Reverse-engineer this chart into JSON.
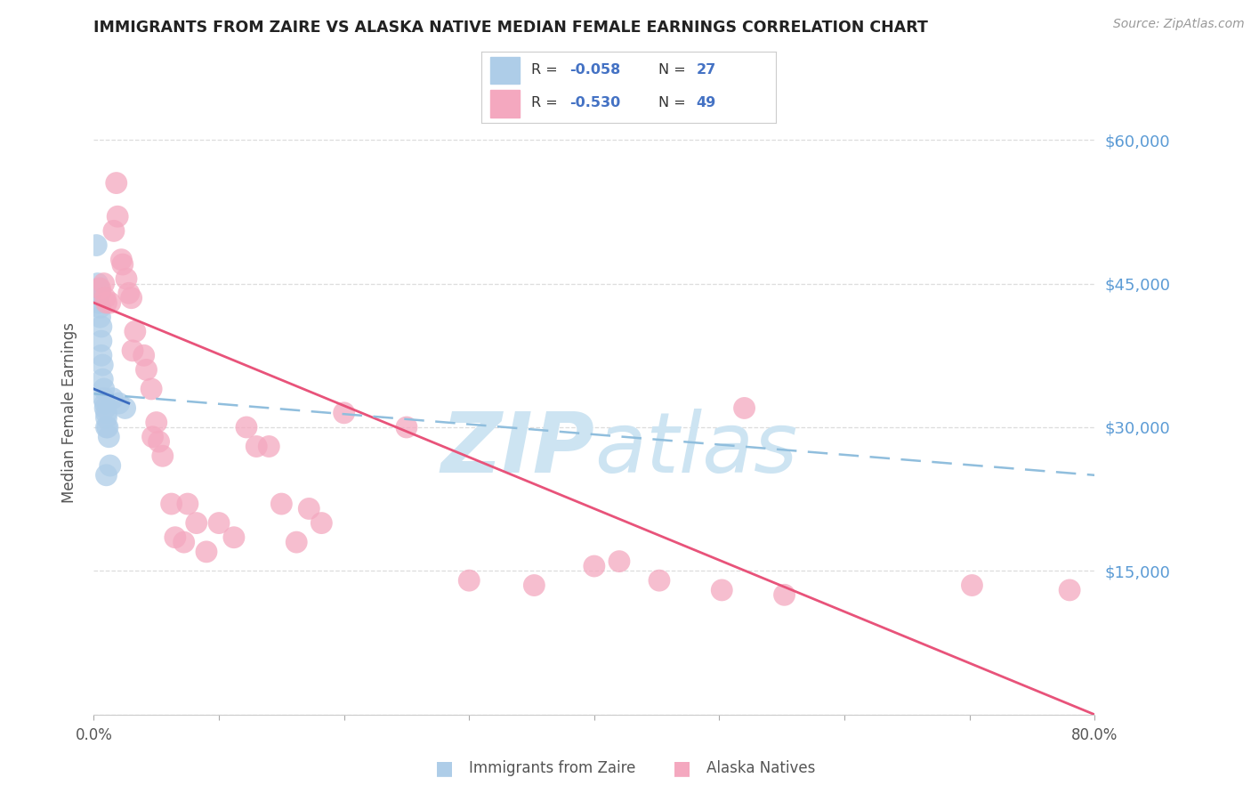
{
  "title": "IMMIGRANTS FROM ZAIRE VS ALASKA NATIVE MEDIAN FEMALE EARNINGS CORRELATION CHART",
  "source": "Source: ZipAtlas.com",
  "ylabel": "Median Female Earnings",
  "xlim": [
    0,
    0.8
  ],
  "ylim": [
    0,
    63000
  ],
  "yticks": [
    0,
    15000,
    30000,
    45000,
    60000
  ],
  "xticks_pos": [
    0.0,
    0.1,
    0.2,
    0.3,
    0.4,
    0.5,
    0.6,
    0.7,
    0.8
  ],
  "xtick_labels": [
    "0.0%",
    "",
    "",
    "",
    "",
    "",
    "",
    "",
    "80.0%"
  ],
  "blue_color": "#aecde8",
  "pink_color": "#f4a8bf",
  "blue_line_color": "#3a6bbf",
  "pink_line_color": "#e8537a",
  "blue_dashed_color": "#90bedd",
  "right_tick_color": "#5b9bd5",
  "text_blue_color": "#4472c4",
  "watermark_color": "#cde4f2",
  "blue_scatter": [
    [
      0.002,
      49000
    ],
    [
      0.003,
      45000
    ],
    [
      0.003,
      44000
    ],
    [
      0.004,
      44500
    ],
    [
      0.004,
      43000
    ],
    [
      0.005,
      44000
    ],
    [
      0.005,
      42500
    ],
    [
      0.005,
      41500
    ],
    [
      0.006,
      40500
    ],
    [
      0.006,
      39000
    ],
    [
      0.006,
      37500
    ],
    [
      0.007,
      36500
    ],
    [
      0.007,
      35000
    ],
    [
      0.008,
      34000
    ],
    [
      0.008,
      33000
    ],
    [
      0.009,
      32500
    ],
    [
      0.009,
      32000
    ],
    [
      0.01,
      31500
    ],
    [
      0.01,
      31000
    ],
    [
      0.01,
      30000
    ],
    [
      0.011,
      30000
    ],
    [
      0.012,
      29000
    ],
    [
      0.015,
      33000
    ],
    [
      0.02,
      32500
    ],
    [
      0.025,
      32000
    ],
    [
      0.013,
      26000
    ],
    [
      0.01,
      25000
    ]
  ],
  "pink_scatter": [
    [
      0.005,
      44500
    ],
    [
      0.008,
      45000
    ],
    [
      0.009,
      43500
    ],
    [
      0.01,
      43000
    ],
    [
      0.013,
      43000
    ],
    [
      0.016,
      50500
    ],
    [
      0.018,
      55500
    ],
    [
      0.019,
      52000
    ],
    [
      0.022,
      47500
    ],
    [
      0.023,
      47000
    ],
    [
      0.026,
      45500
    ],
    [
      0.028,
      44000
    ],
    [
      0.03,
      43500
    ],
    [
      0.031,
      38000
    ],
    [
      0.033,
      40000
    ],
    [
      0.04,
      37500
    ],
    [
      0.042,
      36000
    ],
    [
      0.046,
      34000
    ],
    [
      0.047,
      29000
    ],
    [
      0.05,
      30500
    ],
    [
      0.052,
      28500
    ],
    [
      0.055,
      27000
    ],
    [
      0.062,
      22000
    ],
    [
      0.065,
      18500
    ],
    [
      0.072,
      18000
    ],
    [
      0.075,
      22000
    ],
    [
      0.082,
      20000
    ],
    [
      0.09,
      17000
    ],
    [
      0.1,
      20000
    ],
    [
      0.112,
      18500
    ],
    [
      0.122,
      30000
    ],
    [
      0.13,
      28000
    ],
    [
      0.14,
      28000
    ],
    [
      0.15,
      22000
    ],
    [
      0.162,
      18000
    ],
    [
      0.172,
      21500
    ],
    [
      0.182,
      20000
    ],
    [
      0.2,
      31500
    ],
    [
      0.25,
      30000
    ],
    [
      0.3,
      14000
    ],
    [
      0.352,
      13500
    ],
    [
      0.4,
      15500
    ],
    [
      0.42,
      16000
    ],
    [
      0.452,
      14000
    ],
    [
      0.502,
      13000
    ],
    [
      0.52,
      32000
    ],
    [
      0.552,
      12500
    ],
    [
      0.702,
      13500
    ],
    [
      0.78,
      13000
    ]
  ],
  "blue_line": {
    "x0": 0.0,
    "x1": 0.028,
    "y0": 34000,
    "y1": 32500
  },
  "blue_dashed_line": {
    "x0": 0.0,
    "x1": 0.8,
    "y0": 33500,
    "y1": 25000
  },
  "pink_line": {
    "x0": 0.0,
    "x1": 0.8,
    "y0": 43000,
    "y1": 0
  }
}
